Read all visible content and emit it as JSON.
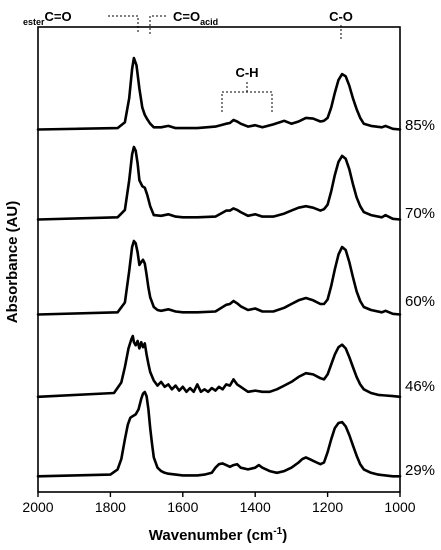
{
  "chart_data": {
    "type": "line",
    "xlabel": "Wavenumber (cm",
    "xlabel_sup": "-1",
    "xlabel_tail": ")",
    "ylabel": "Absorbance (AU)",
    "xlim": [
      2000,
      1000
    ],
    "x_reversed": true,
    "x_ticks": [
      2000,
      1800,
      1600,
      1400,
      1200,
      1000
    ],
    "y_ticks": "none",
    "grid": false,
    "stacked_offsets": true,
    "annotations": {
      "ester_prefix": "ester",
      "ester_label": "C=O",
      "acid_label": "C=O",
      "acid_sub": "acid",
      "ch_label": "C-H",
      "co_label": "C-O"
    },
    "series": [
      {
        "name": "85%",
        "x": [
          2000,
          1780,
          1760,
          1748,
          1740,
          1735,
          1728,
          1720,
          1712,
          1705,
          1698,
          1690,
          1680,
          1660,
          1640,
          1620,
          1600,
          1560,
          1510,
          1480,
          1470,
          1460,
          1450,
          1440,
          1420,
          1400,
          1380,
          1350,
          1320,
          1300,
          1280,
          1260,
          1240,
          1220,
          1210,
          1200,
          1190,
          1180,
          1170,
          1160,
          1150,
          1140,
          1130,
          1120,
          1110,
          1100,
          1080,
          1050,
          1040,
          1020,
          1000
        ],
        "y": [
          0.02,
          0.04,
          0.12,
          0.45,
          0.85,
          1.0,
          0.9,
          0.58,
          0.32,
          0.22,
          0.16,
          0.1,
          0.05,
          0.05,
          0.07,
          0.04,
          0.04,
          0.04,
          0.06,
          0.1,
          0.11,
          0.15,
          0.13,
          0.1,
          0.06,
          0.08,
          0.05,
          0.09,
          0.14,
          0.1,
          0.13,
          0.18,
          0.17,
          0.13,
          0.14,
          0.18,
          0.32,
          0.52,
          0.7,
          0.78,
          0.75,
          0.62,
          0.45,
          0.3,
          0.18,
          0.1,
          0.07,
          0.05,
          0.07,
          0.03,
          0.02
        ]
      },
      {
        "name": "70%",
        "x": [
          2000,
          1780,
          1760,
          1748,
          1740,
          1735,
          1730,
          1725,
          1720,
          1712,
          1705,
          1698,
          1690,
          1680,
          1660,
          1640,
          1620,
          1600,
          1560,
          1510,
          1480,
          1470,
          1460,
          1450,
          1440,
          1420,
          1400,
          1380,
          1350,
          1320,
          1300,
          1280,
          1260,
          1240,
          1220,
          1210,
          1200,
          1190,
          1180,
          1170,
          1160,
          1150,
          1140,
          1130,
          1120,
          1110,
          1100,
          1080,
          1050,
          1040,
          1020,
          1000
        ],
        "y": [
          0.02,
          0.05,
          0.15,
          0.55,
          0.9,
          1.0,
          0.95,
          0.78,
          0.55,
          0.47,
          0.45,
          0.35,
          0.2,
          0.08,
          0.07,
          0.09,
          0.06,
          0.05,
          0.05,
          0.06,
          0.14,
          0.14,
          0.17,
          0.15,
          0.12,
          0.07,
          0.09,
          0.06,
          0.06,
          0.1,
          0.14,
          0.18,
          0.2,
          0.18,
          0.14,
          0.16,
          0.22,
          0.4,
          0.62,
          0.8,
          0.88,
          0.84,
          0.7,
          0.5,
          0.32,
          0.2,
          0.12,
          0.08,
          0.05,
          0.08,
          0.03,
          0.02
        ]
      },
      {
        "name": "60%",
        "x": [
          2000,
          1780,
          1760,
          1748,
          1740,
          1735,
          1730,
          1725,
          1720,
          1715,
          1710,
          1705,
          1700,
          1695,
          1690,
          1680,
          1670,
          1660,
          1640,
          1620,
          1600,
          1560,
          1510,
          1480,
          1470,
          1460,
          1450,
          1440,
          1420,
          1400,
          1380,
          1350,
          1320,
          1300,
          1280,
          1260,
          1240,
          1220,
          1210,
          1200,
          1190,
          1180,
          1170,
          1160,
          1150,
          1140,
          1130,
          1120,
          1110,
          1100,
          1080,
          1050,
          1040,
          1020,
          1000
        ],
        "y": [
          0.02,
          0.05,
          0.18,
          0.6,
          0.92,
          1.0,
          0.97,
          0.85,
          0.68,
          0.72,
          0.75,
          0.7,
          0.55,
          0.38,
          0.25,
          0.12,
          0.08,
          0.07,
          0.09,
          0.06,
          0.05,
          0.05,
          0.06,
          0.15,
          0.16,
          0.2,
          0.17,
          0.13,
          0.08,
          0.1,
          0.06,
          0.06,
          0.11,
          0.16,
          0.21,
          0.24,
          0.21,
          0.16,
          0.16,
          0.22,
          0.4,
          0.62,
          0.82,
          0.92,
          0.88,
          0.72,
          0.52,
          0.33,
          0.2,
          0.12,
          0.08,
          0.05,
          0.07,
          0.03,
          0.02
        ]
      },
      {
        "name": "46%",
        "x": [
          2000,
          1790,
          1770,
          1760,
          1750,
          1742,
          1738,
          1735,
          1730,
          1725,
          1720,
          1715,
          1710,
          1705,
          1700,
          1695,
          1690,
          1680,
          1670,
          1660,
          1650,
          1640,
          1630,
          1620,
          1610,
          1600,
          1590,
          1580,
          1570,
          1560,
          1550,
          1540,
          1530,
          1520,
          1510,
          1500,
          1490,
          1480,
          1470,
          1460,
          1450,
          1440,
          1430,
          1420,
          1400,
          1380,
          1360,
          1340,
          1320,
          1300,
          1280,
          1260,
          1240,
          1220,
          1210,
          1200,
          1190,
          1180,
          1170,
          1160,
          1150,
          1140,
          1130,
          1120,
          1110,
          1100,
          1080,
          1060,
          1040,
          1020,
          1000
        ],
        "y": [
          0.02,
          0.08,
          0.25,
          0.5,
          0.8,
          0.95,
          1.0,
          0.9,
          0.85,
          0.92,
          0.8,
          0.9,
          0.82,
          0.88,
          0.7,
          0.55,
          0.42,
          0.28,
          0.2,
          0.26,
          0.18,
          0.22,
          0.14,
          0.2,
          0.12,
          0.18,
          0.1,
          0.16,
          0.1,
          0.22,
          0.1,
          0.14,
          0.1,
          0.16,
          0.12,
          0.18,
          0.14,
          0.22,
          0.2,
          0.3,
          0.22,
          0.18,
          0.14,
          0.1,
          0.12,
          0.1,
          0.1,
          0.14,
          0.2,
          0.26,
          0.34,
          0.4,
          0.38,
          0.32,
          0.3,
          0.38,
          0.54,
          0.7,
          0.82,
          0.86,
          0.8,
          0.66,
          0.5,
          0.34,
          0.22,
          0.14,
          0.08,
          0.05,
          0.04,
          0.03,
          0.02
        ]
      },
      {
        "name": "29%",
        "x": [
          2000,
          1800,
          1780,
          1770,
          1760,
          1752,
          1745,
          1738,
          1730,
          1722,
          1715,
          1710,
          1705,
          1700,
          1695,
          1690,
          1685,
          1680,
          1670,
          1660,
          1650,
          1640,
          1620,
          1600,
          1580,
          1560,
          1540,
          1520,
          1510,
          1500,
          1490,
          1480,
          1470,
          1460,
          1450,
          1440,
          1420,
          1400,
          1390,
          1380,
          1360,
          1340,
          1320,
          1300,
          1280,
          1270,
          1260,
          1250,
          1240,
          1230,
          1220,
          1210,
          1200,
          1190,
          1180,
          1170,
          1160,
          1150,
          1140,
          1130,
          1120,
          1110,
          1100,
          1080,
          1060,
          1040,
          1020,
          1000
        ],
        "y": [
          0.02,
          0.04,
          0.1,
          0.22,
          0.45,
          0.62,
          0.7,
          0.72,
          0.74,
          0.8,
          0.92,
          0.98,
          1.0,
          0.95,
          0.8,
          0.58,
          0.4,
          0.24,
          0.12,
          0.08,
          0.06,
          0.05,
          0.04,
          0.03,
          0.03,
          0.03,
          0.04,
          0.06,
          0.12,
          0.16,
          0.17,
          0.15,
          0.13,
          0.15,
          0.16,
          0.12,
          0.1,
          0.12,
          0.15,
          0.12,
          0.08,
          0.06,
          0.08,
          0.12,
          0.18,
          0.22,
          0.24,
          0.22,
          0.2,
          0.18,
          0.16,
          0.18,
          0.3,
          0.45,
          0.58,
          0.64,
          0.65,
          0.6,
          0.5,
          0.38,
          0.26,
          0.16,
          0.1,
          0.06,
          0.04,
          0.03,
          0.02,
          0.02
        ]
      }
    ]
  }
}
